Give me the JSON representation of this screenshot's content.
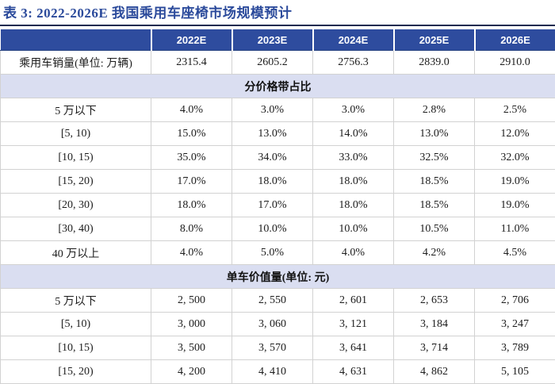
{
  "title": "表 3: 2022-2026E 我国乘用车座椅市场规模预计",
  "colors": {
    "title_color": "#2B4A9B",
    "rule_color": "#1C2B50",
    "header_bg": "#2E4C9E",
    "header_text": "#FFFFFF",
    "section_bg": "#DADEF1",
    "body_border": "#D2D2D2"
  },
  "table": {
    "columns": [
      "",
      "2022E",
      "2023E",
      "2024E",
      "2025E",
      "2026E"
    ],
    "rows": [
      {
        "type": "data",
        "label": "乘用车销量(单位: 万辆)",
        "values": [
          "2315.4",
          "2605.2",
          "2756.3",
          "2839.0",
          "2910.0"
        ]
      },
      {
        "type": "section",
        "label": "分价格带占比"
      },
      {
        "type": "data",
        "label": "5 万以下",
        "values": [
          "4.0%",
          "3.0%",
          "3.0%",
          "2.8%",
          "2.5%"
        ]
      },
      {
        "type": "data",
        "label": "[5, 10)",
        "values": [
          "15.0%",
          "13.0%",
          "14.0%",
          "13.0%",
          "12.0%"
        ]
      },
      {
        "type": "data",
        "label": "[10, 15)",
        "values": [
          "35.0%",
          "34.0%",
          "33.0%",
          "32.5%",
          "32.0%"
        ]
      },
      {
        "type": "data",
        "label": "[15, 20)",
        "values": [
          "17.0%",
          "18.0%",
          "18.0%",
          "18.5%",
          "19.0%"
        ]
      },
      {
        "type": "data",
        "label": "[20, 30)",
        "values": [
          "18.0%",
          "17.0%",
          "18.0%",
          "18.5%",
          "19.0%"
        ]
      },
      {
        "type": "data",
        "label": "[30, 40)",
        "values": [
          "8.0%",
          "10.0%",
          "10.0%",
          "10.5%",
          "11.0%"
        ]
      },
      {
        "type": "data",
        "label": "40 万以上",
        "values": [
          "4.0%",
          "5.0%",
          "4.0%",
          "4.2%",
          "4.5%"
        ]
      },
      {
        "type": "section",
        "label": "单车价值量(单位: 元)"
      },
      {
        "type": "data",
        "label": "5 万以下",
        "values": [
          "2, 500",
          "2, 550",
          "2, 601",
          "2, 653",
          "2, 706"
        ]
      },
      {
        "type": "data",
        "label": "[5, 10)",
        "values": [
          "3, 000",
          "3, 060",
          "3, 121",
          "3, 184",
          "3, 247"
        ]
      },
      {
        "type": "data",
        "label": "[10, 15)",
        "values": [
          "3, 500",
          "3, 570",
          "3, 641",
          "3, 714",
          "3, 789"
        ]
      },
      {
        "type": "data",
        "label": "[15, 20)",
        "values": [
          "4, 200",
          "4, 410",
          "4, 631",
          "4, 862",
          "5, 105"
        ]
      }
    ]
  }
}
